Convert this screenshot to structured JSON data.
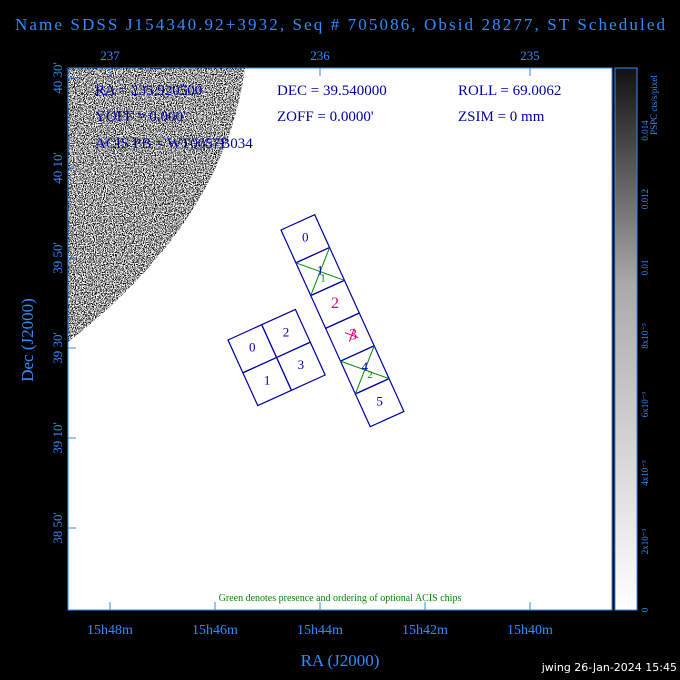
{
  "title": "Name SDSS J154340.92+3932, Seq # 705086, Obsid 28277, ST Scheduled",
  "top_axis": [
    "237",
    "236",
    "235"
  ],
  "left_axis": [
    "40 30'",
    "40 10'",
    "39 50'",
    "39 30'",
    "39 10'",
    "38 50'"
  ],
  "bottom_axis": [
    "15h48m",
    "15h46m",
    "15h44m",
    "15h42m",
    "15h40m"
  ],
  "x_label": "RA (J2000)",
  "y_label": "Dec (J2000)",
  "info": [
    "RA = 235.920500",
    "DEC = 39.540000",
    "ROLL = 69.0062",
    "YOFF = 0.000'",
    "ZOFF = 0.0000'",
    "ZSIM = 0 mm",
    "ACIS PB = WT0057B034"
  ],
  "chips": {
    "s_array": [
      "0",
      "1",
      "2",
      "3",
      "4",
      "5"
    ],
    "i_array": [
      "0",
      "2",
      "1",
      "3"
    ],
    "optional": [
      "1",
      "2"
    ]
  },
  "note": "Green denotes presence and ordering of optional ACIS chips",
  "colorbar": {
    "title": "PSPC cts/s/pixel",
    "labels": [
      "0",
      "2x10⁻³",
      "4x10⁻³",
      "6x10⁻³",
      "8x10⁻³",
      "0.01",
      "0.012",
      "0.014"
    ]
  },
  "footer": "jwing 26-Jan-2024 15:45"
}
